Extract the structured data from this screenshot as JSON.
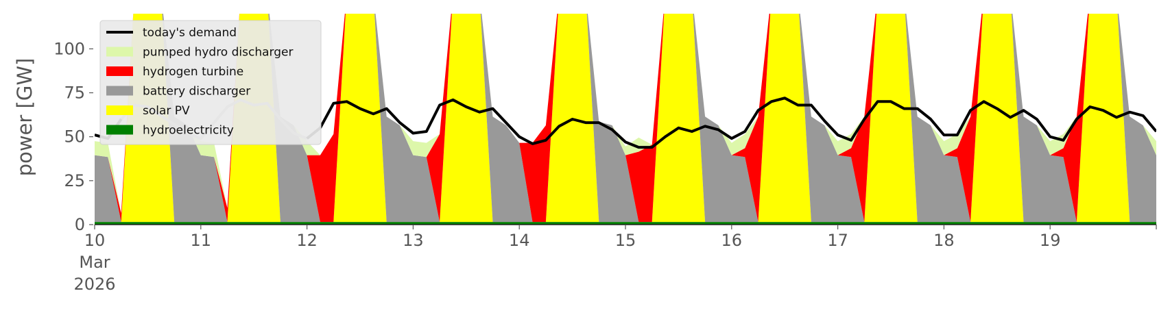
{
  "chart_data": {
    "type": "area",
    "xlabel": "",
    "ylabel": "power [GW]",
    "ylim": [
      0,
      120
    ],
    "xlim": [
      "2026-03-10 00:00",
      "2026-03-20 00:00"
    ],
    "time_step_hours": 3,
    "grid": false,
    "background": "#ffffff",
    "legend_position": "top-left",
    "x_ticks": [
      {
        "date": "2026-03-10",
        "label": "10",
        "sub1": "Mar",
        "sub2": "2026"
      },
      {
        "date": "2026-03-11",
        "label": "11"
      },
      {
        "date": "2026-03-12",
        "label": "12"
      },
      {
        "date": "2026-03-13",
        "label": "13"
      },
      {
        "date": "2026-03-14",
        "label": "14"
      },
      {
        "date": "2026-03-15",
        "label": "15"
      },
      {
        "date": "2026-03-16",
        "label": "16"
      },
      {
        "date": "2026-03-17",
        "label": "17"
      },
      {
        "date": "2026-03-18",
        "label": "18"
      },
      {
        "date": "2026-03-19",
        "label": "19"
      }
    ],
    "y_ticks": [
      0,
      25,
      50,
      75,
      100
    ],
    "series": [
      {
        "name": "hydroelectricity",
        "color": "#008000",
        "values": [
          1.5,
          1.5,
          1.5,
          1.5,
          1.5,
          1.5,
          1.5,
          1.5,
          1.5,
          1.5,
          1.5,
          1.5,
          1.5,
          1.5,
          1.5,
          1.5,
          1.5,
          1.5,
          1.5,
          1.5,
          1.5,
          1.5,
          1.5,
          1.5,
          1.5,
          1.5,
          1.5,
          1.5,
          1.5,
          1.5,
          1.5,
          1.5,
          1.5,
          1.5,
          1.5,
          1.5,
          1.5,
          1.5,
          1.5,
          1.5,
          1.5,
          1.5,
          1.5,
          1.5,
          1.5,
          1.5,
          1.5,
          1.5,
          1.5,
          1.5,
          1.5,
          1.5,
          1.5,
          1.5,
          1.5,
          1.5,
          1.5,
          1.5,
          1.5,
          1.5,
          1.5,
          1.5,
          1.5,
          1.5,
          1.5,
          1.5,
          1.5,
          1.5,
          1.5,
          1.5,
          1.5,
          1.5,
          1.5,
          1.5,
          1.5,
          1.5,
          1.5,
          1.5,
          1.5,
          1.5,
          1.5
        ]
      },
      {
        "name": "solar PV",
        "color": "#ffff00",
        "values": [
          0,
          0,
          0,
          130,
          130,
          130,
          0,
          0,
          0,
          0,
          0,
          130,
          130,
          130,
          0,
          0,
          0,
          0,
          0,
          130,
          130,
          130,
          0,
          0,
          0,
          0,
          0,
          130,
          130,
          130,
          0,
          0,
          0,
          0,
          0,
          130,
          130,
          130,
          0,
          0,
          0,
          0,
          0,
          130,
          130,
          130,
          0,
          0,
          0,
          0,
          0,
          130,
          130,
          130,
          0,
          0,
          0,
          0,
          0,
          130,
          130,
          130,
          0,
          0,
          0,
          0,
          0,
          130,
          130,
          130,
          0,
          0,
          0,
          0,
          0,
          130,
          130,
          130,
          0,
          0,
          0
        ]
      },
      {
        "name": "battery discharger",
        "color": "#999999",
        "values": [
          38,
          37,
          0,
          0,
          0,
          0,
          60,
          55,
          38,
          37,
          0,
          0,
          0,
          0,
          60,
          55,
          38,
          0,
          0,
          0,
          0,
          0,
          60,
          55,
          38,
          37,
          0,
          0,
          0,
          0,
          60,
          55,
          45,
          0,
          0,
          0,
          0,
          0,
          57,
          55,
          38,
          0,
          0,
          0,
          0,
          0,
          60,
          55,
          38,
          37,
          0,
          0,
          0,
          0,
          60,
          55,
          38,
          37,
          0,
          0,
          0,
          0,
          60,
          55,
          38,
          37,
          0,
          0,
          0,
          0,
          60,
          55,
          38,
          37,
          0,
          0,
          0,
          0,
          60,
          55,
          38
        ]
      },
      {
        "name": "hydrogen turbine",
        "color": "#ff0000",
        "values": [
          0,
          0,
          5,
          0,
          0,
          0,
          0,
          0,
          0,
          0,
          8,
          0,
          0,
          0,
          0,
          0,
          0,
          38,
          50,
          0,
          0,
          0,
          0,
          0,
          0,
          0,
          50,
          0,
          0,
          0,
          0,
          0,
          0,
          45,
          55,
          0,
          0,
          0,
          0,
          0,
          0,
          40,
          44,
          0,
          0,
          0,
          0,
          0,
          0,
          5,
          60,
          0,
          0,
          0,
          0,
          0,
          0,
          5,
          60,
          0,
          0,
          0,
          0,
          0,
          0,
          5,
          60,
          0,
          0,
          0,
          0,
          0,
          0,
          5,
          60,
          0,
          0,
          0,
          0,
          0,
          0
        ]
      },
      {
        "name": "pumped hydro discharger",
        "color": "#ddf7aa",
        "values": [
          8,
          8,
          0,
          0,
          0,
          0,
          0,
          0,
          8,
          8,
          0,
          0,
          0,
          0,
          0,
          0,
          8,
          0,
          0,
          0,
          0,
          0,
          0,
          0,
          8,
          8,
          0,
          0,
          0,
          0,
          0,
          0,
          0,
          0,
          0,
          0,
          0,
          0,
          0,
          0,
          5,
          8,
          0,
          0,
          0,
          0,
          0,
          0,
          7,
          8,
          0,
          0,
          0,
          0,
          0,
          0,
          8,
          8,
          0,
          0,
          0,
          0,
          0,
          0,
          8,
          8,
          0,
          0,
          0,
          0,
          0,
          0,
          8,
          8,
          0,
          0,
          0,
          0,
          0,
          0,
          8
        ]
      }
    ],
    "demand": {
      "name": "today's demand",
      "color": "#000000",
      "past_color": "#bbbbbb",
      "values": [
        51,
        49,
        60,
        68,
        67,
        62,
        57,
        52,
        49,
        58,
        67,
        71,
        68,
        69,
        60,
        52,
        49,
        55,
        69,
        70,
        66,
        63,
        66,
        58,
        52,
        53,
        68,
        71,
        67,
        64,
        66,
        58,
        50,
        46,
        48,
        56,
        60,
        58,
        58,
        54,
        47,
        44,
        44,
        50,
        55,
        53,
        56,
        54,
        49,
        53,
        65,
        70,
        72,
        68,
        68,
        59,
        51,
        48,
        60,
        70,
        70,
        66,
        66,
        60,
        51,
        51,
        65,
        70,
        66,
        61,
        65,
        60,
        50,
        48,
        60,
        67,
        65,
        61,
        64,
        62,
        53
      ]
    }
  }
}
